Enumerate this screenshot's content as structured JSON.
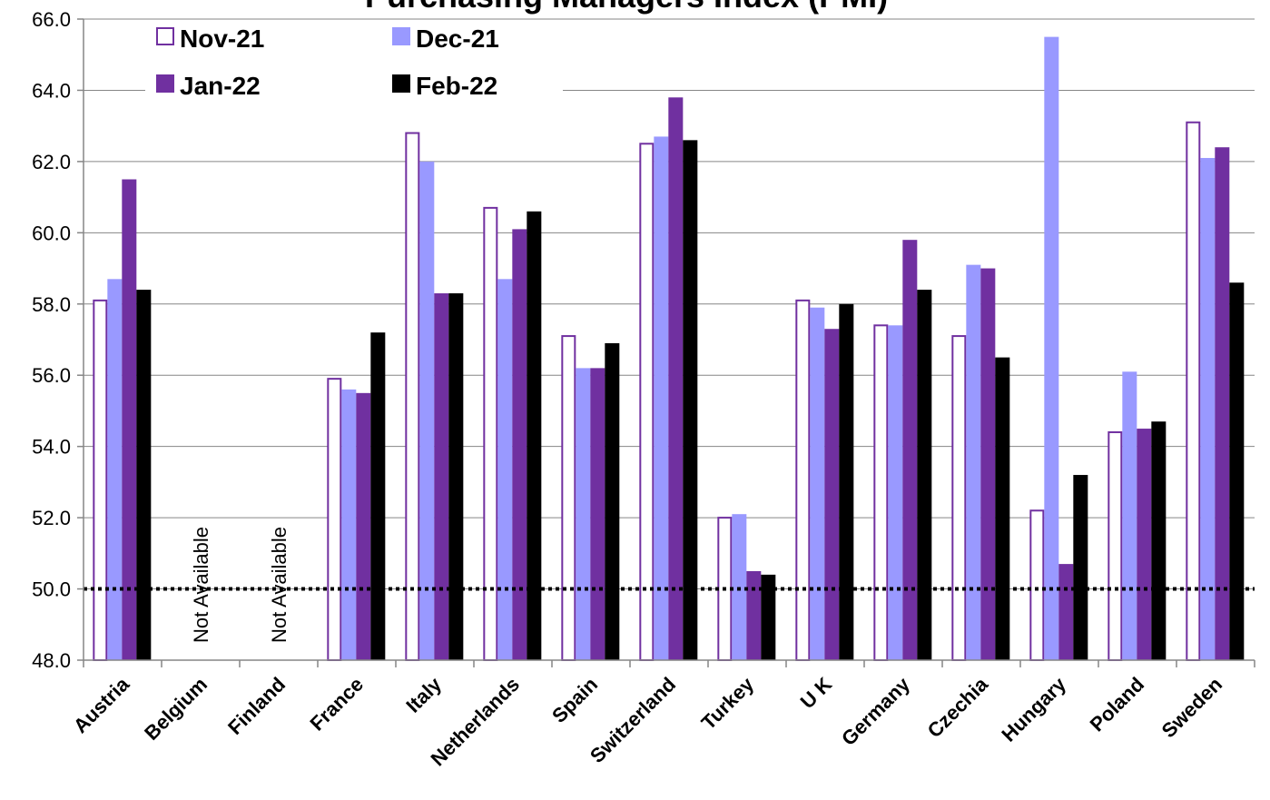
{
  "chart_data": {
    "type": "bar",
    "title": "Purchasing Managers Index (PMI)",
    "categories": [
      "Austria",
      "Belgium",
      "Finland",
      "France",
      "Italy",
      "Netherlands",
      "Spain",
      "Switzerland",
      "Turkey",
      "U K",
      "Germany",
      "Czechia",
      "Hungary",
      "Poland",
      "Sweden"
    ],
    "series": [
      {
        "name": "Nov-21",
        "color": "#ffffff",
        "stroke": "#7030a0",
        "values": [
          58.1,
          null,
          null,
          55.9,
          62.8,
          60.7,
          57.1,
          62.5,
          52.0,
          58.1,
          57.4,
          57.1,
          52.2,
          54.4,
          63.1
        ]
      },
      {
        "name": "Dec-21",
        "color": "#9999ff",
        "stroke": "#9999ff",
        "values": [
          58.7,
          null,
          null,
          55.6,
          62.0,
          58.7,
          56.2,
          62.7,
          52.1,
          57.9,
          57.4,
          59.1,
          65.5,
          56.1,
          62.1
        ]
      },
      {
        "name": "Jan-22",
        "color": "#7030a0",
        "stroke": "#7030a0",
        "values": [
          61.5,
          null,
          null,
          55.5,
          58.3,
          60.1,
          56.2,
          63.8,
          50.5,
          57.3,
          59.8,
          59.0,
          50.7,
          54.5,
          62.4
        ]
      },
      {
        "name": "Feb-22",
        "color": "#000000",
        "stroke": "#000000",
        "values": [
          58.4,
          null,
          null,
          57.2,
          58.3,
          60.6,
          56.9,
          62.6,
          50.4,
          58.0,
          58.4,
          56.5,
          53.2,
          54.7,
          58.6
        ]
      }
    ],
    "ylim": [
      48.0,
      66.0
    ],
    "yticks": [
      "48.0",
      "50.0",
      "52.0",
      "54.0",
      "56.0",
      "58.0",
      "60.0",
      "62.0",
      "64.0",
      "66.0"
    ],
    "reference_line": 50.0,
    "not_available_text": "Not Available",
    "not_available_categories": [
      "Belgium",
      "Finland"
    ],
    "grid": true,
    "legend_placement": "top-left"
  }
}
